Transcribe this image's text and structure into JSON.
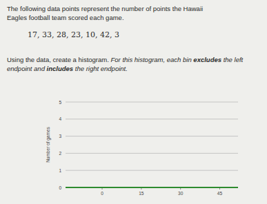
{
  "intro": [
    "The following data points represent the number of points the Hawaii",
    "Eagles football team scored each game."
  ],
  "data_line": "17, 33, 28, 23, 10, 42, 3",
  "instruction": [
    "Using the data, create a histogram.",
    " For this histogram, each bin ",
    "excludes",
    " the left endpoint and ",
    "includes",
    " the right endpoint."
  ],
  "chart_data": {
    "type": "histogram",
    "y_label": "Number of games",
    "xlim": [
      -14,
      52
    ],
    "xticks": [
      0,
      15,
      30,
      45
    ],
    "ylim": [
      0,
      5
    ],
    "yticks": [
      0,
      1,
      2,
      3,
      4,
      5
    ],
    "grid": true,
    "color": "#2e8b2e"
  }
}
